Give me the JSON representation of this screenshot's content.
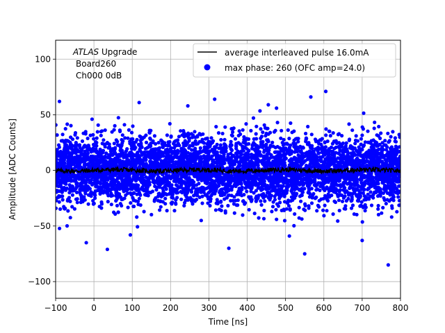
{
  "chart_data": {
    "type": "scatter",
    "title": "",
    "xlabel": "Time [ns]",
    "ylabel": "Amplitude [ADC Counts]",
    "xlim": [
      -100,
      800
    ],
    "ylim": [
      -115,
      117
    ],
    "xticks": [
      -100,
      0,
      100,
      200,
      300,
      400,
      500,
      600,
      700,
      800
    ],
    "yticks": [
      -100,
      -50,
      0,
      50,
      100
    ],
    "grid": true,
    "legend_position": "upper right",
    "annotation": {
      "italic": "ATLAS",
      "text": "Upgrade",
      "line2": "Board260",
      "line3": "Ch000 0dB"
    },
    "series": [
      {
        "name": "max phase: 260 (OFC amp=24.0)",
        "kind": "scatter",
        "color": "#0000ff",
        "description_x_range": [
          -100,
          800
        ],
        "noise_sigma": 15,
        "outlier_points": [
          {
            "x": -90,
            "y": 62
          },
          {
            "x": -20,
            "y": -65
          },
          {
            "x": 35,
            "y": -71
          },
          {
            "x": 95,
            "y": -58
          },
          {
            "x": 118,
            "y": 61
          },
          {
            "x": 315,
            "y": 64
          },
          {
            "x": 352,
            "y": -70
          },
          {
            "x": 455,
            "y": 59
          },
          {
            "x": 550,
            "y": -75
          },
          {
            "x": 605,
            "y": 71
          },
          {
            "x": 700,
            "y": -63
          },
          {
            "x": 768,
            "y": -85
          },
          {
            "x": 566,
            "y": 66
          },
          {
            "x": 245,
            "y": 58
          },
          {
            "x": 510,
            "y": -59
          }
        ]
      },
      {
        "name": "average interleaved pulse 16.0mA",
        "kind": "line",
        "color": "#000000",
        "level": 0
      }
    ]
  }
}
